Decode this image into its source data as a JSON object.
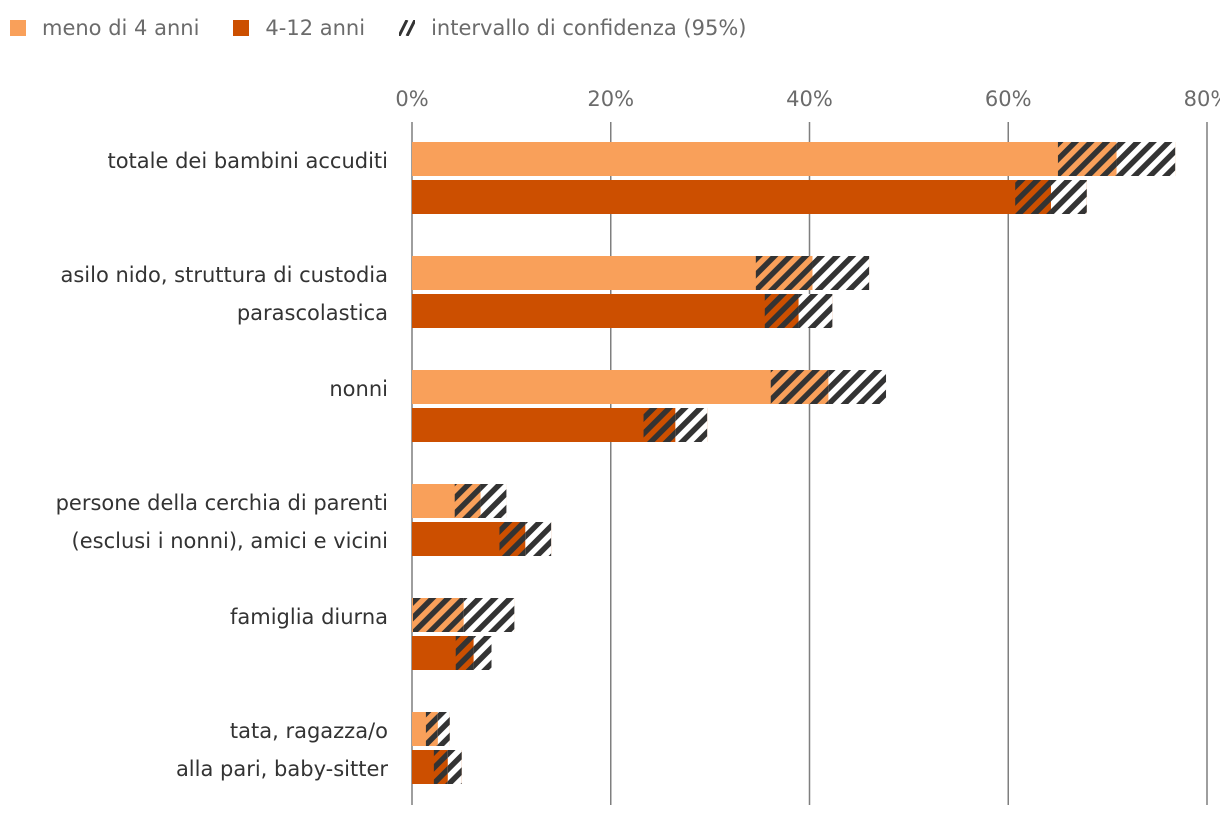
{
  "legend": {
    "series0": "meno di 4 anni",
    "series1": "4-12 anni",
    "ci": "intervallo di confidenza (95%)"
  },
  "colors": {
    "series0": "#F9A05A",
    "series1": "#CC4F00",
    "hatch": "#333333",
    "grid": "#7f7f7f"
  },
  "chart_data": {
    "type": "bar",
    "orientation": "horizontal",
    "categories": [
      [
        "totale dei bambini accuditi"
      ],
      [
        "asilo nido, struttura di custodia",
        "parascolastica"
      ],
      [
        "nonni"
      ],
      [
        "persone della cerchia di parenti",
        "(esclusi i nonni), amici e vicini"
      ],
      [
        "famiglia diurna"
      ],
      [
        "tata, ragazza/o",
        "alla pari, baby-sitter"
      ]
    ],
    "xticks": [
      "0%",
      "20%",
      "40%",
      "60%",
      "80%"
    ],
    "xlim": [
      0,
      80
    ],
    "xaxis_position": "top",
    "grid": true,
    "legend_position": "top-left",
    "series": [
      {
        "name": "meno di 4 anni",
        "values": [
          70.9,
          40.3,
          41.9,
          6.9,
          5.2,
          2.6
        ],
        "ci": [
          5.9,
          5.7,
          5.8,
          2.6,
          5.1,
          1.2
        ]
      },
      {
        "name": "4-12 anni",
        "values": [
          64.3,
          38.9,
          26.5,
          11.4,
          6.2,
          3.6
        ],
        "ci": [
          3.6,
          3.4,
          3.2,
          2.6,
          1.8,
          1.4
        ]
      }
    ]
  }
}
